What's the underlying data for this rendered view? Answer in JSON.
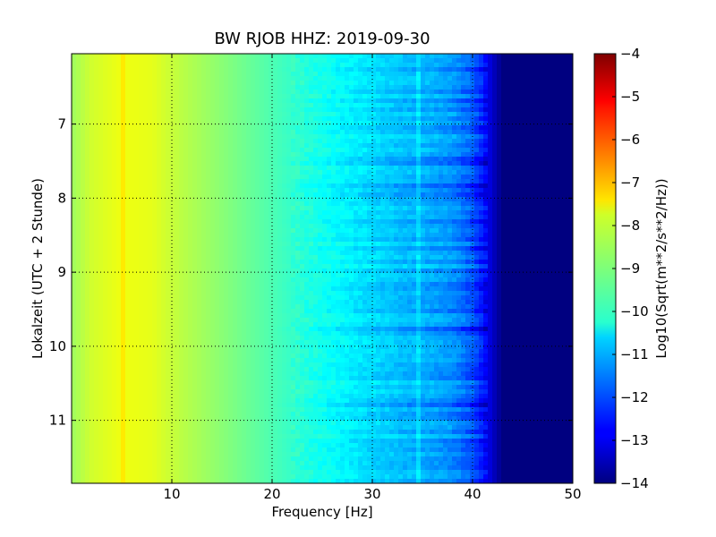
{
  "chart_data": {
    "type": "heatmap",
    "title": "BW RJOB HHZ: 2019-09-30",
    "xlabel": "Frequency [Hz]",
    "ylabel": "Lokalzeit (UTC + 2 Stunde)",
    "xlim": [
      0,
      50
    ],
    "ylim": [
      6.05,
      11.85
    ],
    "y_inverted": true,
    "grid": true,
    "x_ticks": [
      10,
      20,
      30,
      40,
      50
    ],
    "x_tick_labels": [
      "10",
      "20",
      "30",
      "40",
      "50"
    ],
    "y_ticks": [
      7,
      8,
      9,
      10,
      11
    ],
    "y_tick_labels": [
      "7",
      "8",
      "9",
      "10",
      "11"
    ],
    "colorbar": {
      "label": "Log10(Sqrt(m**2/s**2/Hz))",
      "range": [
        -14,
        -4
      ],
      "ticks": [
        -4,
        -5,
        -6,
        -7,
        -8,
        -9,
        -10,
        -11,
        -12,
        -13,
        -14
      ],
      "tick_labels": [
        "−4",
        "−5",
        "−6",
        "−7",
        "−8",
        "−9",
        "−10",
        "−11",
        "−12",
        "−13",
        "−14"
      ],
      "colormap": "jet"
    },
    "spectrum_profile": {
      "frequency_hz": [
        0,
        2,
        5,
        8,
        10,
        15,
        20,
        25,
        30,
        33,
        35,
        38,
        40,
        41,
        42,
        43,
        45,
        50
      ],
      "log10_amplitude": [
        -8.7,
        -8.2,
        -7.9,
        -8.0,
        -8.3,
        -8.9,
        -9.5,
        -10.1,
        -10.6,
        -10.9,
        -11.0,
        -11.3,
        -11.9,
        -12.5,
        -13.3,
        -14.0,
        -14.0,
        -14.0
      ]
    },
    "features": [
      {
        "frequency_hz": 5,
        "note": "narrow peak line"
      },
      {
        "frequency_hz": 34.5,
        "note": "drifting line"
      }
    ]
  }
}
